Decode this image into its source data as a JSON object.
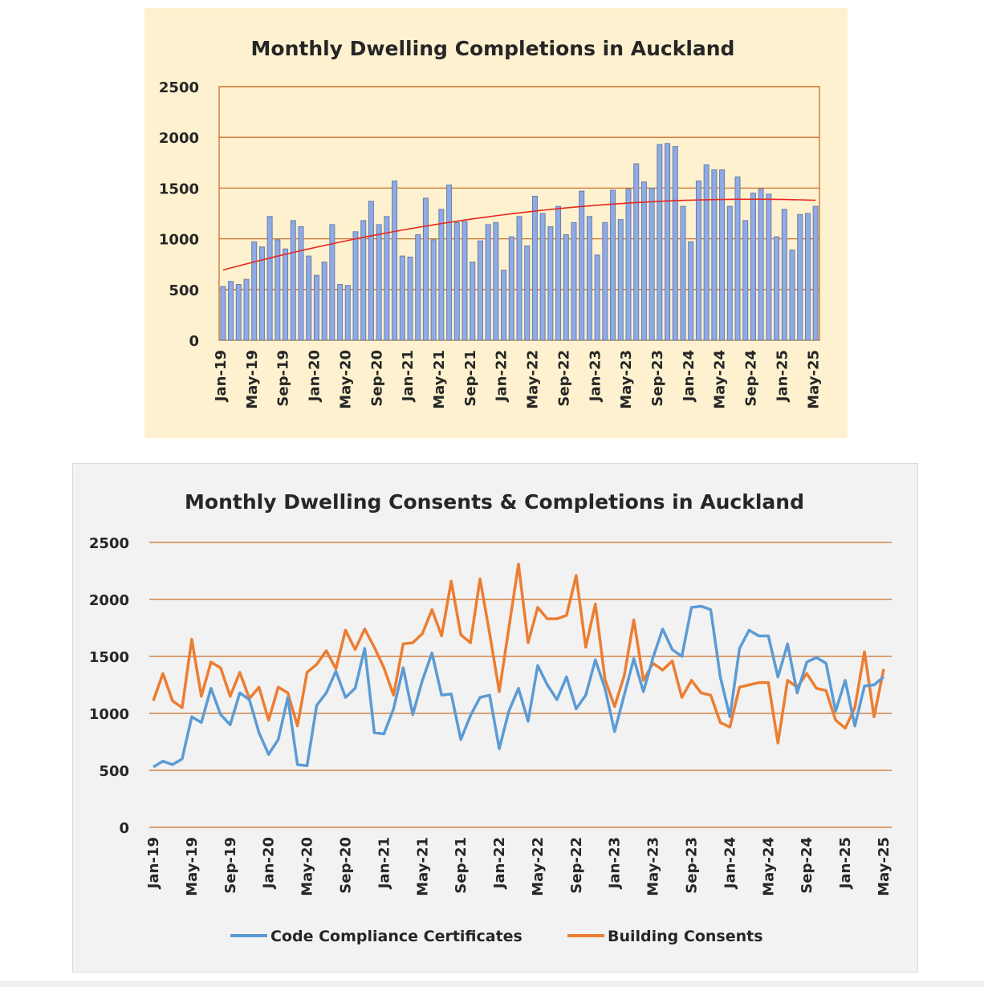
{
  "chart_data": [
    {
      "type": "bar",
      "title": "Monthly Dwelling Completions in Auckland",
      "xlabel": "",
      "ylabel": "",
      "ylim": [
        0,
        2500
      ],
      "yticks": [
        "0",
        "500",
        "1000",
        "1500",
        "2000",
        "2500"
      ],
      "tick_labels": [
        "Jan-19",
        "May-19",
        "Sep-19",
        "Jan-20",
        "May-20",
        "Sep-20",
        "Jan-21",
        "May-21",
        "Sep-21",
        "Jan-22",
        "May-22",
        "Sep-22",
        "Jan-23",
        "May-23",
        "Sep-23",
        "Jan-24",
        "May-24",
        "Sep-24",
        "Jan-25",
        "May-25"
      ],
      "grid": true,
      "trendline": "polynomial",
      "colors": {
        "bar": "#8eaae8",
        "bar_edge": "#6b7fa6",
        "trend": "#e8261c",
        "grid": "#c8702a",
        "bg": "#fdf1cf"
      },
      "values": [
        530,
        580,
        550,
        600,
        970,
        920,
        1220,
        990,
        900,
        1180,
        1120,
        830,
        640,
        770,
        1140,
        550,
        540,
        1070,
        1180,
        1370,
        1140,
        1220,
        1570,
        830,
        820,
        1040,
        1400,
        990,
        1290,
        1530,
        1160,
        1170,
        770,
        980,
        1140,
        1160,
        690,
        1020,
        1220,
        930,
        1420,
        1250,
        1120,
        1320,
        1040,
        1160,
        1470,
        1220,
        840,
        1160,
        1480,
        1190,
        1490,
        1740,
        1560,
        1500,
        1930,
        1940,
        1910,
        1320,
        970,
        1570,
        1730,
        1680,
        1680,
        1320,
        1610,
        1180,
        1450,
        1490,
        1440,
        1020,
        1290,
        890,
        1240,
        1250,
        1320
      ]
    },
    {
      "type": "line",
      "title": "Monthly Dwelling Consents & Completions in Auckland",
      "xlabel": "",
      "ylabel": "",
      "ylim": [
        0,
        2500
      ],
      "yticks": [
        "0",
        "500",
        "1000",
        "1500",
        "2000",
        "2500"
      ],
      "tick_labels": [
        "Jan-19",
        "May-19",
        "Sep-19",
        "Jan-20",
        "May-20",
        "Sep-20",
        "Jan-21",
        "May-21",
        "Sep-21",
        "Jan-22",
        "May-22",
        "Sep-22",
        "Jan-23",
        "May-23",
        "Sep-23",
        "Jan-24",
        "May-24",
        "Sep-24",
        "Jan-25",
        "May-25"
      ],
      "grid": true,
      "legend": "bottom",
      "series": [
        {
          "name": "Code Compliance Certificates",
          "color": "#5b9bd5",
          "values": [
            530,
            580,
            550,
            600,
            970,
            920,
            1220,
            990,
            900,
            1180,
            1120,
            830,
            640,
            770,
            1140,
            550,
            540,
            1070,
            1180,
            1370,
            1140,
            1220,
            1570,
            830,
            820,
            1040,
            1400,
            990,
            1290,
            1530,
            1160,
            1170,
            770,
            980,
            1140,
            1160,
            690,
            1020,
            1220,
            930,
            1420,
            1250,
            1120,
            1320,
            1040,
            1160,
            1470,
            1220,
            840,
            1160,
            1480,
            1190,
            1490,
            1740,
            1560,
            1500,
            1930,
            1940,
            1910,
            1320,
            970,
            1570,
            1730,
            1680,
            1680,
            1320,
            1610,
            1180,
            1450,
            1490,
            1440,
            1020,
            1290,
            890,
            1240,
            1250,
            1320
          ]
        },
        {
          "name": "Building Consents",
          "color": "#ed7d31",
          "values": [
            1110,
            1350,
            1110,
            1050,
            1650,
            1150,
            1450,
            1400,
            1150,
            1360,
            1130,
            1230,
            940,
            1230,
            1180,
            890,
            1360,
            1430,
            1550,
            1390,
            1730,
            1560,
            1740,
            1580,
            1400,
            1160,
            1610,
            1620,
            1700,
            1910,
            1680,
            2160,
            1690,
            1620,
            2180,
            1700,
            1190,
            1750,
            2310,
            1620,
            1930,
            1830,
            1830,
            1860,
            2210,
            1580,
            1960,
            1300,
            1060,
            1330,
            1820,
            1290,
            1440,
            1380,
            1460,
            1140,
            1290,
            1180,
            1160,
            920,
            880,
            1230,
            1250,
            1270,
            1270,
            740,
            1290,
            1230,
            1350,
            1220,
            1200,
            940,
            870,
            1050,
            1540,
            970,
            1390
          ]
        }
      ],
      "colors": {
        "grid": "#c8702a",
        "bg": "#f2f2f2"
      }
    }
  ]
}
